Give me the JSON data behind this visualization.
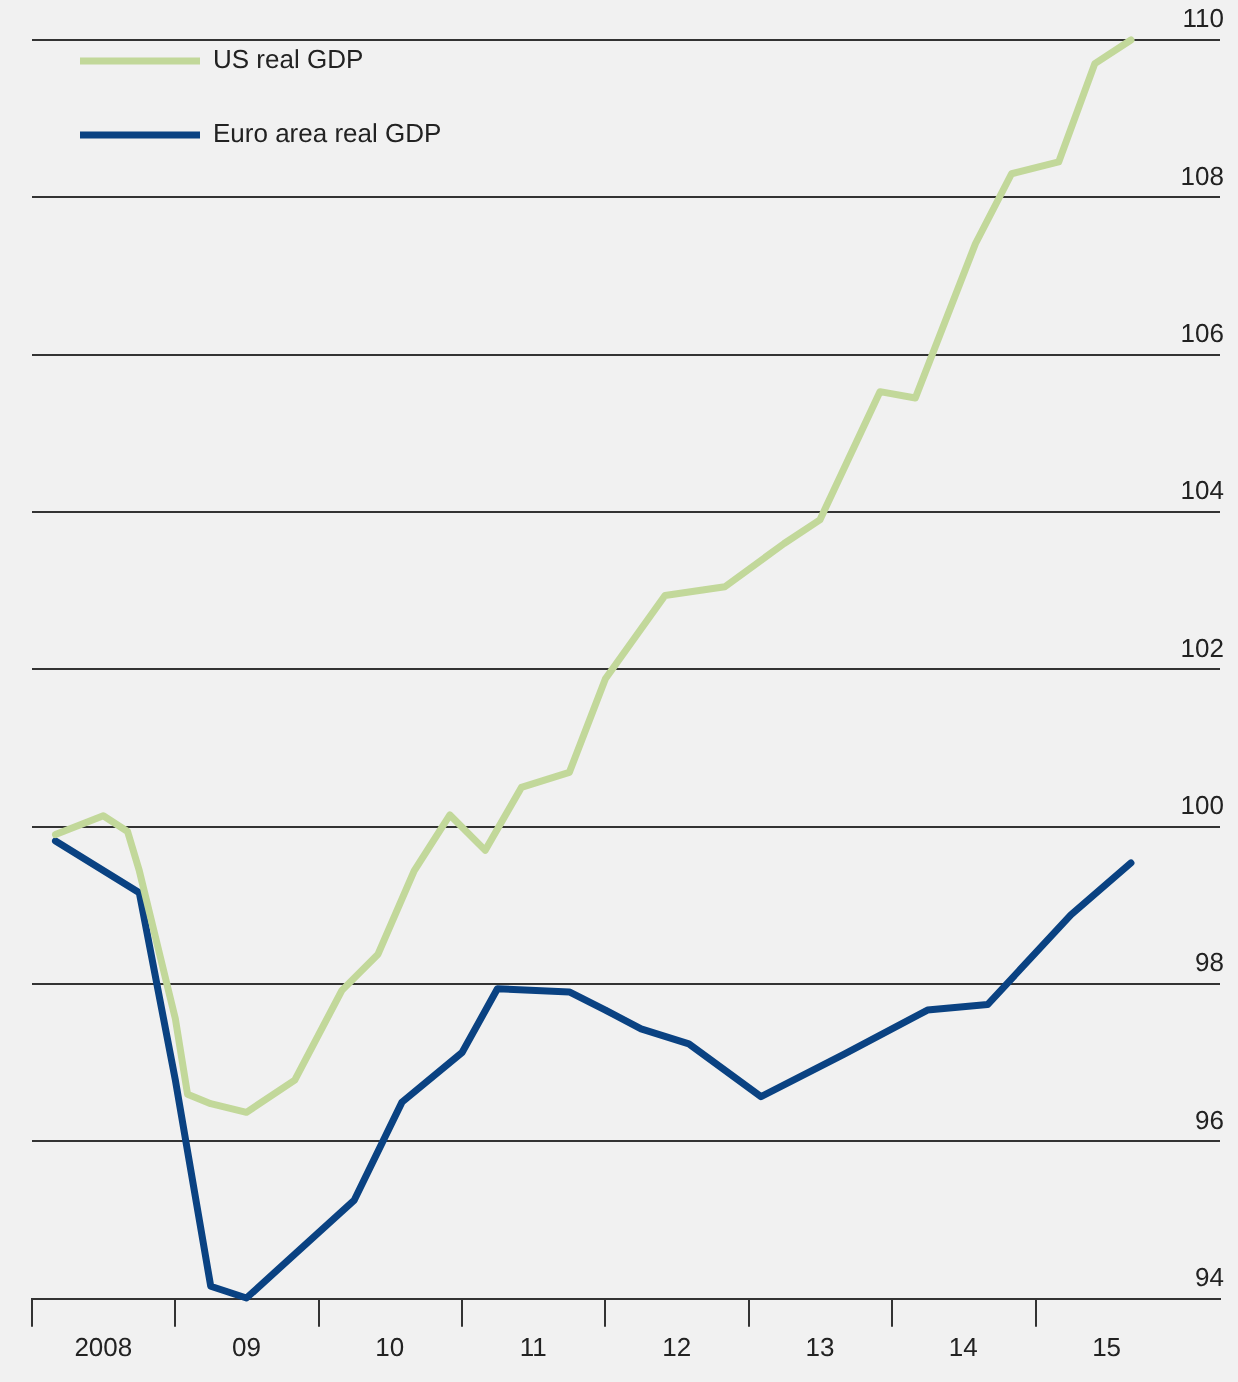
{
  "chart_data": {
    "type": "line",
    "legend": "top left",
    "grid": "y",
    "marker": "none",
    "line_style": "solid",
    "xlim": [
      "2008-01-01",
      "2016-04-15"
    ],
    "xticks": [
      {
        "value": "2008-01-01",
        "label": null
      },
      {
        "value": "2008-07-01",
        "label": "2008"
      },
      {
        "value": "2009-01-01",
        "label": null
      },
      {
        "value": "2009-07-01",
        "label": "09"
      },
      {
        "value": "2010-01-01",
        "label": null
      },
      {
        "value": "2010-07-01",
        "label": "10"
      },
      {
        "value": "2011-01-01",
        "label": null
      },
      {
        "value": "2011-07-01",
        "label": "11"
      },
      {
        "value": "2012-01-01",
        "label": null
      },
      {
        "value": "2012-07-01",
        "label": "12"
      },
      {
        "value": "2013-01-01",
        "label": null
      },
      {
        "value": "2013-07-01",
        "label": "13"
      },
      {
        "value": "2014-01-01",
        "label": null
      },
      {
        "value": "2014-07-01",
        "label": "14"
      },
      {
        "value": "2015-01-01",
        "label": null
      },
      {
        "value": "2015-07-01",
        "label": "15"
      }
    ],
    "ylim": [
      94,
      110
    ],
    "yticks": [
      94,
      96,
      98,
      100,
      102,
      104,
      106,
      108,
      110
    ],
    "series": [
      {
        "name": "US real GDP",
        "color": "#c2d89a",
        "x": [
          "2008-03",
          "2008-07",
          "2008-09",
          "2008-10",
          "2009-01",
          "2009-02",
          "2009-04",
          "2009-07",
          "2009-11",
          "2010-03",
          "2010-06",
          "2010-09",
          "2010-12",
          "2011-03",
          "2011-06",
          "2011-10",
          "2012-01",
          "2012-06",
          "2012-11",
          "2013-04",
          "2013-07",
          "2013-12",
          "2014-03",
          "2014-08",
          "2014-11",
          "2015-03",
          "2015-06",
          "2015-09"
        ],
        "values": [
          99.9,
          100.14,
          99.94,
          99.44,
          97.56,
          96.6,
          96.48,
          96.37,
          96.78,
          97.92,
          98.38,
          99.44,
          100.15,
          99.7,
          100.5,
          100.69,
          101.88,
          102.94,
          103.05,
          103.6,
          103.9,
          105.53,
          105.45,
          107.41,
          108.3,
          108.45,
          109.7,
          110
        ]
      },
      {
        "name": "Euro area real GDP",
        "color": "#0a4282",
        "x": [
          "2008-03",
          "2008-10",
          "2009-01",
          "2009-04",
          "2009-07",
          "2010-04",
          "2010-08",
          "2011-01",
          "2011-04",
          "2011-10",
          "2012-01",
          "2012-04",
          "2012-08",
          "2013-02",
          "2013-09",
          "2014-04",
          "2014-09",
          "2015-04",
          "2015-09"
        ],
        "values": [
          99.82,
          99.16,
          96.78,
          94.16,
          94.01,
          95.25,
          96.5,
          97.13,
          97.94,
          97.9,
          97.67,
          97.43,
          97.24,
          96.57,
          97.11,
          97.67,
          97.74,
          98.88,
          99.54
        ]
      }
    ]
  }
}
